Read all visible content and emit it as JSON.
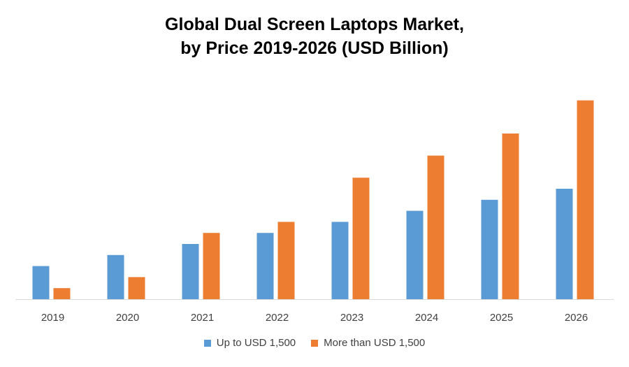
{
  "chart_data": {
    "type": "bar",
    "title": "Global Dual Screen Laptops Market, by Price 2019-2026 (USD Billion)",
    "title_lines": [
      "Global Dual Screen Laptops Market,",
      "by Price 2019-2026 (USD Billion)"
    ],
    "xlabel": "",
    "ylabel": "",
    "categories": [
      "2019",
      "2020",
      "2021",
      "2022",
      "2023",
      "2024",
      "2025",
      "2026"
    ],
    "series": [
      {
        "name": "Up to USD 1,500",
        "color": "#5B9BD5",
        "values": [
          1.5,
          2.0,
          2.5,
          3.0,
          3.5,
          4.0,
          4.5,
          5.0
        ]
      },
      {
        "name": "More than USD 1,500",
        "color": "#ED7D31",
        "values": [
          0.5,
          1.0,
          3.0,
          3.5,
          5.5,
          6.5,
          7.5,
          9.0
        ]
      }
    ],
    "ylim": [
      0,
      10
    ],
    "grid": false,
    "legend_position": "bottom"
  }
}
